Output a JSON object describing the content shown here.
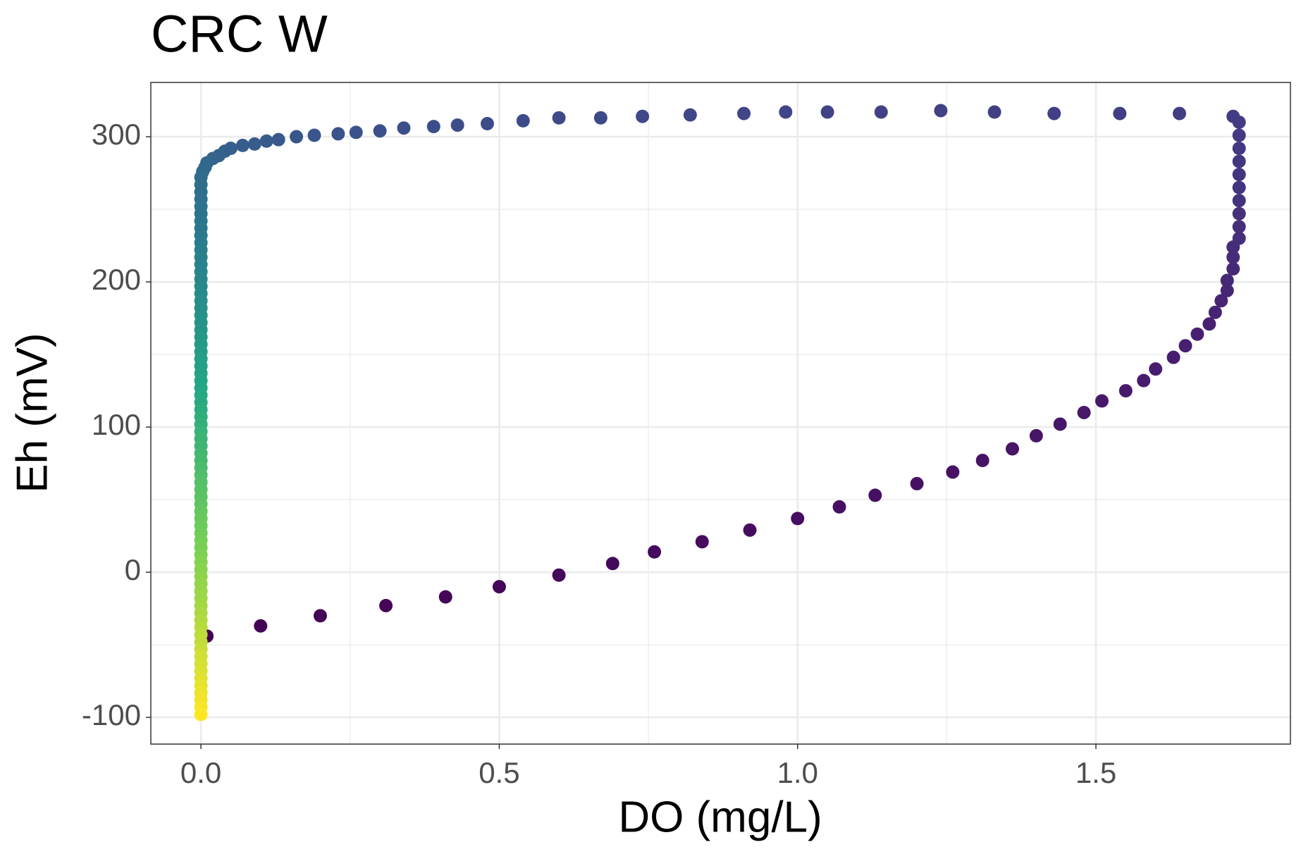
{
  "chart_data": {
    "type": "scatter",
    "title": "CRC W",
    "x_label": "DO (mg/L)",
    "y_label": "Eh (mV)",
    "x": [
      0.01,
      0.1,
      0.2,
      0.31,
      0.41,
      0.5,
      0.6,
      0.69,
      0.76,
      0.84,
      0.92,
      1.0,
      1.07,
      1.13,
      1.2,
      1.26,
      1.31,
      1.36,
      1.4,
      1.44,
      1.48,
      1.51,
      1.55,
      1.58,
      1.6,
      1.63,
      1.65,
      1.67,
      1.69,
      1.7,
      1.71,
      1.72,
      1.72,
      1.73,
      1.73,
      1.73,
      1.74,
      1.74,
      1.74,
      1.74,
      1.74,
      1.74,
      1.74,
      1.74,
      1.74,
      1.74,
      1.73,
      1.64,
      1.54,
      1.43,
      1.33,
      1.24,
      1.14,
      1.05,
      0.98,
      0.91,
      0.82,
      0.74,
      0.67,
      0.6,
      0.54,
      0.48,
      0.43,
      0.39,
      0.34,
      0.3,
      0.26,
      0.23,
      0.19,
      0.16,
      0.13,
      0.11,
      0.09,
      0.07,
      0.05,
      0.04,
      0.03,
      0.02,
      0.01,
      0.007,
      0.003,
      0,
      0,
      0,
      0,
      0,
      0,
      0,
      0,
      0,
      0,
      0,
      0,
      0,
      0,
      0,
      0,
      0,
      0,
      0,
      0,
      0,
      0,
      0,
      0,
      0,
      0,
      0,
      0,
      0,
      0,
      0,
      0,
      0,
      0,
      0,
      0,
      0,
      0,
      0,
      0,
      0,
      0,
      0,
      0,
      0,
      0,
      0,
      0,
      0,
      0,
      0,
      0,
      0,
      0,
      0,
      0,
      0,
      0,
      0,
      0,
      0,
      0,
      0,
      0,
      0,
      0,
      0,
      0,
      0,
      0,
      0,
      0,
      0,
      0,
      0
    ],
    "y": [
      -44,
      -37,
      -30,
      -23,
      -17,
      -10,
      -2,
      6,
      14,
      21,
      29,
      37,
      45,
      53,
      61,
      69,
      77,
      85,
      94,
      102,
      110,
      118,
      125,
      132,
      140,
      148,
      156,
      164,
      171,
      179,
      187,
      194,
      201,
      209,
      217,
      224,
      230,
      238,
      247,
      256,
      265,
      274,
      283,
      292,
      301,
      310,
      314,
      316,
      316,
      316,
      317,
      318,
      317,
      317,
      317,
      316,
      315,
      314,
      313,
      313,
      311,
      309,
      308,
      307,
      306,
      304,
      303,
      302,
      301,
      300,
      298,
      297,
      295,
      294,
      292,
      290,
      287,
      285,
      282,
      279,
      276,
      272,
      267,
      262,
      257,
      252,
      247,
      242,
      237,
      232,
      227,
      222,
      217,
      212,
      207,
      202,
      197,
      192,
      187,
      182,
      177,
      172,
      167,
      162,
      157,
      152,
      147,
      142,
      137,
      132,
      127,
      122,
      117,
      112,
      107,
      102,
      97,
      92,
      87,
      82,
      77,
      72,
      67,
      62,
      57,
      52,
      47,
      42,
      37,
      32,
      27,
      22,
      17,
      12,
      7,
      2,
      -3,
      -8,
      -13,
      -18,
      -23,
      -28,
      -33,
      -38,
      -43,
      -48,
      -53,
      -58,
      -63,
      -68,
      -73,
      -78,
      -83,
      -88,
      -93,
      -98
    ],
    "colors": [
      "#440154",
      "#481a6c",
      "#443a83",
      "#3b528b",
      "#2a788e",
      "#22a884",
      "#7ad151",
      "#fde725"
    ],
    "xlim": [
      -0.084,
      1.826
    ],
    "ylim": [
      -118.4,
      337.4
    ],
    "xticks": [
      {
        "value": 0,
        "label": "0.0"
      },
      0.5,
      {
        "value": 1,
        "label": "1.0"
      },
      1.5
    ],
    "yticks": [
      -100,
      0,
      100,
      200,
      300
    ],
    "minor_xticks": [
      0.25,
      0.75,
      1.25
    ],
    "minor_yticks": [
      -50,
      50,
      150,
      250
    ],
    "grid": true
  }
}
